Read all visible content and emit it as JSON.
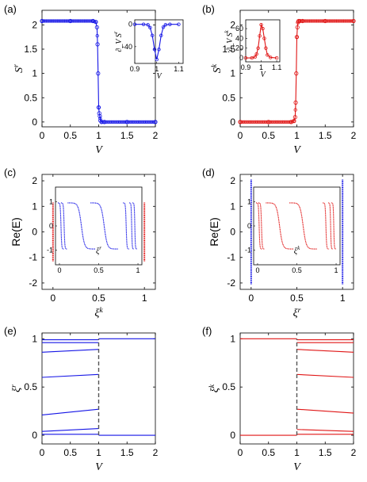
{
  "colors": {
    "blue": "#1515e6",
    "red": "#e01515",
    "gray": "#555555"
  },
  "panel_labels": [
    "(a)",
    "(b)",
    "(c)",
    "(d)",
    "(e)",
    "(f)"
  ],
  "chart_data": [
    {
      "id": "a",
      "type": "line",
      "xlabel": "V",
      "ylabel": "S^r",
      "xlim": [
        0,
        2
      ],
      "ylim": [
        -0.1,
        2.3
      ],
      "xticks": [
        "0",
        "0.5",
        "1",
        "1.5",
        "2"
      ],
      "yticks": [
        "0",
        "0.5",
        "1",
        "1.5",
        "2"
      ],
      "series": [
        {
          "color": "blue",
          "markers": true,
          "x": [
            0,
            0.5,
            0.9,
            0.95,
            0.97,
            0.98,
            0.99,
            1.0,
            1.01,
            1.02,
            1.03,
            1.05,
            1.1,
            1.5,
            2.0
          ],
          "y": [
            2.08,
            2.08,
            2.08,
            2.06,
            1.95,
            1.6,
            1.0,
            0.3,
            0.18,
            0.12,
            0.03,
            0.0,
            0.0,
            0.0,
            0.0
          ]
        }
      ],
      "inset": {
        "xlabel": "V",
        "ylabel": "∂_V S^r",
        "xlim": [
          0.9,
          1.12
        ],
        "ylim": [
          -70,
          8
        ],
        "xticks": [
          "0.9",
          "1",
          "1.1"
        ],
        "yticks": [
          "0",
          "-40"
        ],
        "series": [
          {
            "color": "blue",
            "markers": true,
            "x": [
              0.9,
              0.94,
              0.96,
              0.97,
              0.98,
              0.99,
              1.0,
              1.01,
              1.02,
              1.03,
              1.04,
              1.06,
              1.1
            ],
            "y": [
              0,
              0,
              -1,
              -6,
              -20,
              -45,
              -63,
              -45,
              -20,
              -5,
              -1,
              0,
              0
            ]
          }
        ]
      }
    },
    {
      "id": "b",
      "type": "line",
      "xlabel": "V",
      "ylabel": "S^k",
      "xlim": [
        0,
        2
      ],
      "ylim": [
        -0.1,
        2.3
      ],
      "xticks": [
        "0",
        "0.5",
        "1",
        "1.5",
        "2"
      ],
      "yticks": [
        "0",
        "0.5",
        "1",
        "1.5",
        "2"
      ],
      "series": [
        {
          "color": "red",
          "markers": true,
          "x": [
            0,
            0.5,
            0.9,
            0.95,
            0.97,
            0.98,
            0.99,
            1.0,
            1.01,
            1.02,
            1.03,
            1.05,
            1.1,
            1.5,
            2.0
          ],
          "y": [
            0.0,
            0.0,
            0.0,
            0.02,
            0.1,
            0.4,
            1.0,
            1.75,
            1.95,
            2.05,
            2.08,
            2.08,
            2.08,
            2.08,
            2.08
          ]
        }
      ],
      "inset": {
        "xlabel": "V",
        "ylabel": "∂_V S^k",
        "xlim": [
          0.9,
          1.12
        ],
        "ylim": [
          -8,
          78
        ],
        "xticks": [
          "0.9",
          "1",
          "1.1"
        ],
        "yticks": [
          "0",
          "20",
          "40",
          "60"
        ],
        "series": [
          {
            "color": "red",
            "markers": true,
            "x": [
              0.9,
              0.94,
              0.96,
              0.97,
              0.98,
              0.99,
              1.0,
              1.01,
              1.02,
              1.03,
              1.04,
              1.06,
              1.1
            ],
            "y": [
              0,
              0,
              2,
              8,
              20,
              45,
              68,
              60,
              40,
              20,
              6,
              1,
              0
            ]
          }
        ]
      }
    },
    {
      "id": "c",
      "type": "scatter",
      "xlabel": "ξ^k",
      "ylabel": "Re(E)",
      "xlim": [
        -0.12,
        1.12
      ],
      "ylim": [
        -2.25,
        2.25
      ],
      "xticks": [
        "0",
        "0.5",
        "1"
      ],
      "yticks": [
        "-2",
        "-1",
        "0",
        "1",
        "2"
      ],
      "series": [
        {
          "color": "red",
          "points": [
            {
              "x": 0.0,
              "y0": -1.15,
              "y1": 1.15
            },
            {
              "x": 1.0,
              "y0": -1.15,
              "y1": 1.15
            }
          ]
        }
      ],
      "inset": {
        "xlabel": "ξ^r",
        "xlim": [
          -0.05,
          1.05
        ],
        "ylim": [
          -1.6,
          1.6
        ],
        "xticks": [
          "0",
          "0.5",
          "1"
        ],
        "yticks": [
          "-1",
          "0",
          "1"
        ]
      }
    },
    {
      "id": "d",
      "type": "scatter",
      "xlabel": "ξ^r",
      "ylabel": "Re(E)",
      "xlim": [
        -0.12,
        1.12
      ],
      "ylim": [
        -2.25,
        2.25
      ],
      "xticks": [
        "0",
        "0.5",
        "1"
      ],
      "yticks": [
        "-2",
        "-1",
        "0",
        "1",
        "2"
      ],
      "series": [
        {
          "color": "blue",
          "points": [
            {
              "x": 0.0,
              "y0": -2.05,
              "y1": 2.05
            },
            {
              "x": 1.0,
              "y0": -2.05,
              "y1": 2.05
            }
          ]
        }
      ],
      "inset": {
        "xlabel": "ξ^k",
        "xlim": [
          -0.05,
          1.05
        ],
        "ylim": [
          -1.6,
          1.6
        ],
        "xticks": [
          "0",
          "0.5",
          "1"
        ],
        "yticks": [
          "-1",
          "0",
          "1"
        ]
      }
    },
    {
      "id": "e",
      "type": "line",
      "xlabel": "V",
      "ylabel": "ξ^r",
      "xlim": [
        0,
        2
      ],
      "ylim": [
        -0.09,
        1.06
      ],
      "xticks": [
        "0",
        "0.5",
        "1",
        "1.5",
        "2"
      ],
      "yticks": [
        "0",
        "0.5",
        "1"
      ],
      "series": [
        {
          "color": "blue",
          "x": [
            0,
            1
          ],
          "y": [
            0.99,
            0.99
          ]
        },
        {
          "color": "blue",
          "x": [
            0,
            1
          ],
          "y": [
            0.96,
            0.96
          ]
        },
        {
          "color": "blue",
          "x": [
            0,
            1
          ],
          "y": [
            0.86,
            0.89
          ]
        },
        {
          "color": "blue",
          "x": [
            0,
            1
          ],
          "y": [
            0.6,
            0.63
          ]
        },
        {
          "color": "blue",
          "x": [
            0,
            1
          ],
          "y": [
            0.21,
            0.27
          ]
        },
        {
          "color": "blue",
          "x": [
            0,
            1
          ],
          "y": [
            0.04,
            0.07
          ]
        },
        {
          "color": "blue",
          "x": [
            0,
            1
          ],
          "y": [
            0.01,
            0.01
          ]
        },
        {
          "color": "blue",
          "x": [
            1,
            2
          ],
          "y": [
            1.0,
            1.0
          ]
        },
        {
          "color": "blue",
          "x": [
            1,
            2
          ],
          "y": [
            0.0,
            0.0
          ]
        }
      ],
      "dashed": {
        "color": "gray",
        "x": 1,
        "y0": 0.0,
        "y1": 1.0
      }
    },
    {
      "id": "f",
      "type": "line",
      "xlabel": "V",
      "ylabel": "ξ^k",
      "xlim": [
        0,
        2
      ],
      "ylim": [
        -0.09,
        1.06
      ],
      "xticks": [
        "0",
        "0.5",
        "1",
        "1.5",
        "2"
      ],
      "yticks": [
        "0",
        "0.5",
        "1"
      ],
      "series": [
        {
          "color": "red",
          "x": [
            0,
            1
          ],
          "y": [
            1.0,
            1.0
          ]
        },
        {
          "color": "red",
          "x": [
            0,
            1
          ],
          "y": [
            0.0,
            0.0
          ]
        },
        {
          "color": "red",
          "x": [
            1,
            2
          ],
          "y": [
            0.99,
            0.99
          ]
        },
        {
          "color": "red",
          "x": [
            1,
            2
          ],
          "y": [
            0.96,
            0.96
          ]
        },
        {
          "color": "red",
          "x": [
            1,
            2
          ],
          "y": [
            0.89,
            0.86
          ]
        },
        {
          "color": "red",
          "x": [
            1,
            2
          ],
          "y": [
            0.63,
            0.6
          ]
        },
        {
          "color": "red",
          "x": [
            1,
            2
          ],
          "y": [
            0.27,
            0.23
          ]
        },
        {
          "color": "red",
          "x": [
            1,
            2
          ],
          "y": [
            0.06,
            0.04
          ]
        },
        {
          "color": "red",
          "x": [
            1,
            2
          ],
          "y": [
            0.01,
            0.01
          ]
        }
      ],
      "dashed": {
        "color": "gray",
        "x": 1,
        "y0": 0.0,
        "y1": 1.0
      }
    }
  ]
}
